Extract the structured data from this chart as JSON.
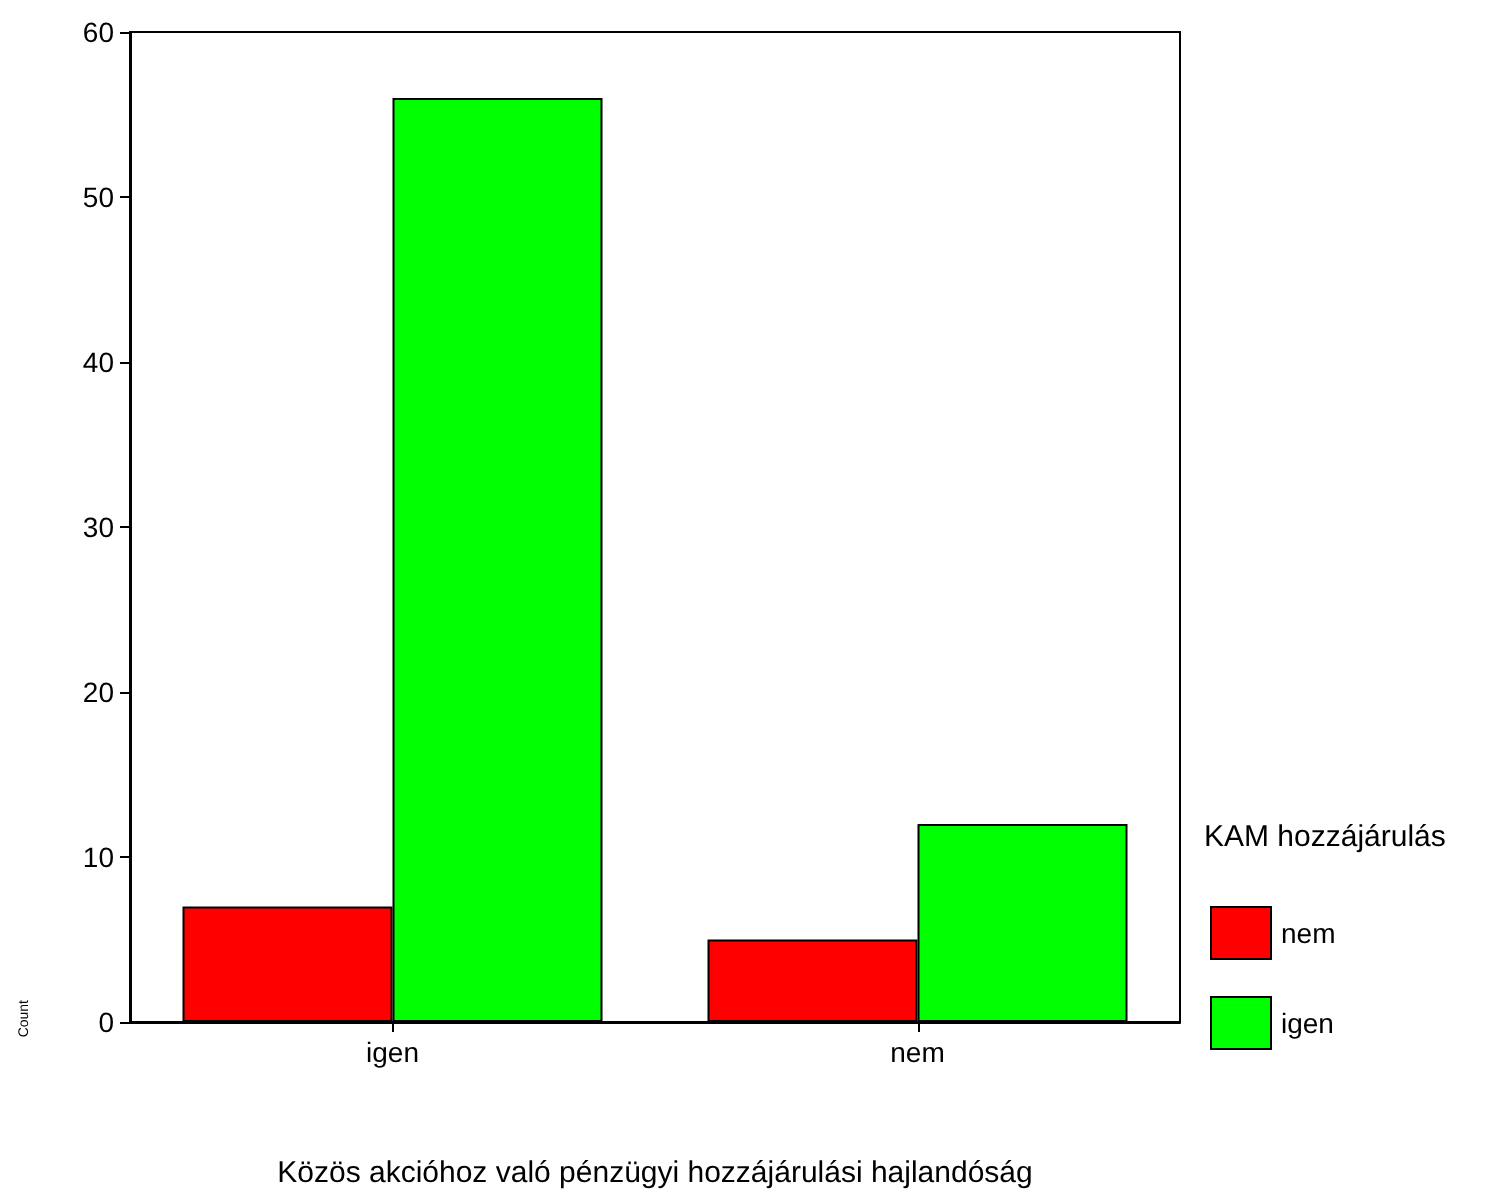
{
  "chart_data": {
    "type": "bar",
    "xlabel": "Közös akcióhoz való pénzügyi hozzájárulási hajlandóság",
    "ylabel": "Count",
    "legend_title": "KAM hozzájárulás",
    "categories": [
      "igen",
      "nem"
    ],
    "series": [
      {
        "name": "nem",
        "color": "#ff0000",
        "values": [
          7,
          5
        ]
      },
      {
        "name": "igen",
        "color": "#00ff00",
        "values": [
          56,
          12
        ]
      }
    ],
    "ylim": [
      0,
      60
    ],
    "yticks": [
      0,
      10,
      20,
      30,
      40,
      50,
      60
    ],
    "grid": false,
    "legend": "right"
  }
}
